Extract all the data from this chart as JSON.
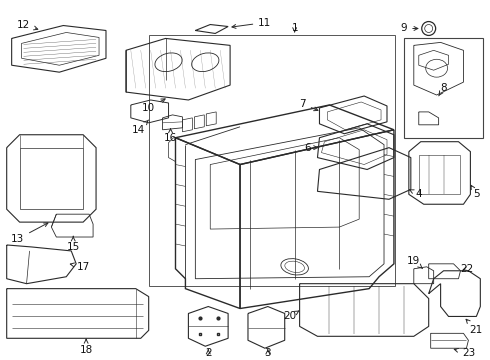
{
  "bg_color": "#ffffff",
  "line_color": "#2a2a2a",
  "fig_width": 4.9,
  "fig_height": 3.6,
  "dpi": 100,
  "fontsize": 7.5
}
